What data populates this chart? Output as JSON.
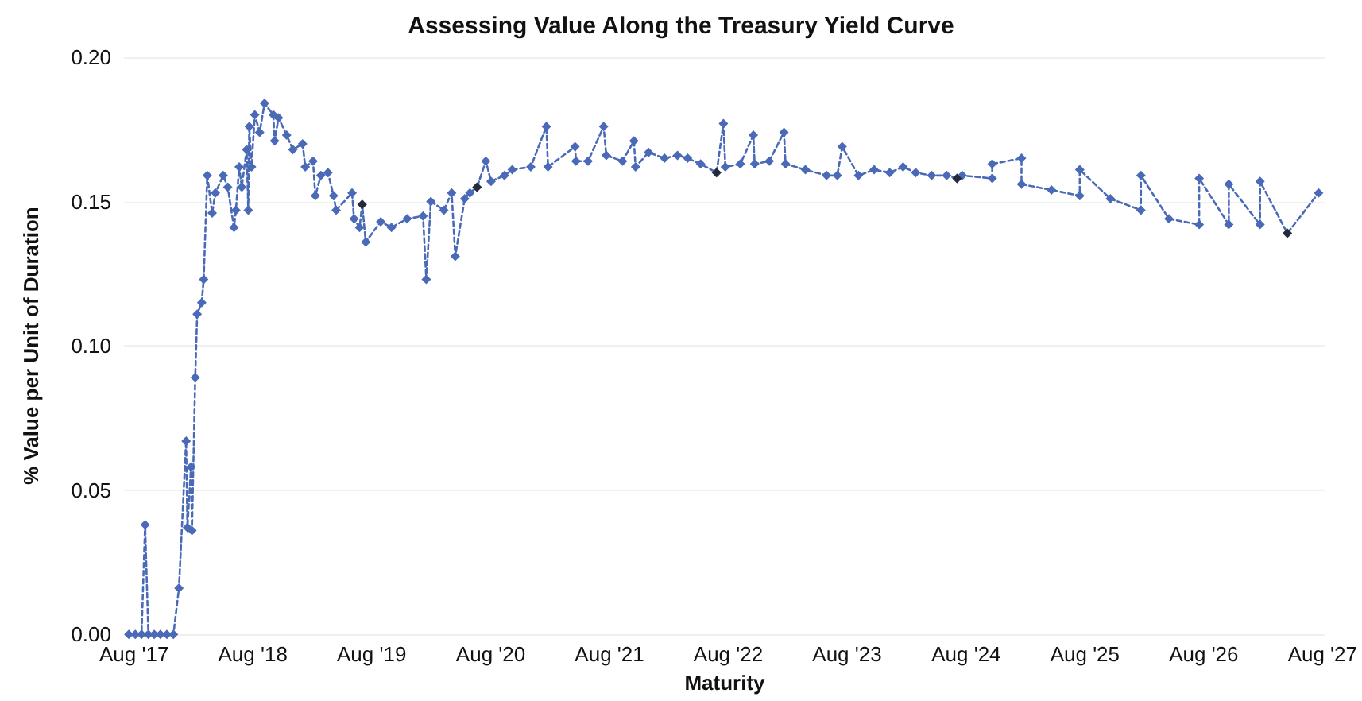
{
  "chart_data": {
    "type": "line",
    "title": "Assessing Value Along the Treasury Yield Curve",
    "xlabel": "Maturity",
    "ylabel": "% Value per Unit of Duration",
    "xlim": [
      "2017-07-01",
      "2027-08-10"
    ],
    "ylim": [
      0,
      0.2
    ],
    "xticks": [
      {
        "value": "2017-08",
        "label": "Aug '17"
      },
      {
        "value": "2018-08",
        "label": "Aug '18"
      },
      {
        "value": "2019-08",
        "label": "Aug '19"
      },
      {
        "value": "2020-08",
        "label": "Aug '20"
      },
      {
        "value": "2021-08",
        "label": "Aug '21"
      },
      {
        "value": "2022-08",
        "label": "Aug '22"
      },
      {
        "value": "2023-08",
        "label": "Aug '23"
      },
      {
        "value": "2024-08",
        "label": "Aug '24"
      },
      {
        "value": "2025-08",
        "label": "Aug '25"
      },
      {
        "value": "2026-08",
        "label": "Aug '26"
      },
      {
        "value": "2027-08",
        "label": "Aug '27"
      }
    ],
    "yticks": [
      {
        "value": 0,
        "label": "0.00"
      },
      {
        "value": 0.05,
        "label": "0.05"
      },
      {
        "value": 0.1,
        "label": "0.10"
      },
      {
        "value": 0.15,
        "label": "0.15"
      },
      {
        "value": 0.2,
        "label": "0.20"
      }
    ],
    "grid": "y",
    "marker": "diamond",
    "line_style": "dashed",
    "series": [
      {
        "color": "#4a6ab8",
        "x": [
          "2017-07-16",
          "2017-08-05",
          "2017-08-24",
          "2017-09-04",
          "2017-09-14",
          "2017-10-02",
          "2017-10-21",
          "2017-11-10",
          "2017-11-30",
          "2017-12-17",
          "2018-01-08",
          "2018-01-12",
          "2018-01-23",
          "2018-01-26",
          "2018-02-05",
          "2018-02-11",
          "2018-02-25",
          "2018-03-03",
          "2018-03-14",
          "2018-03-29",
          "2018-04-08",
          "2018-05-02",
          "2018-05-16",
          "2018-06-04",
          "2018-06-10",
          "2018-06-20",
          "2018-06-28",
          "2018-07-13",
          "2018-07-18",
          "2018-07-21",
          "2018-07-28",
          "2018-08-07",
          "2018-08-22",
          "2018-09-06",
          "2018-10-03",
          "2018-10-07",
          "2018-10-19",
          "2018-11-13",
          "2018-12-02",
          "2019-01-01",
          "2019-01-09",
          "2019-02-02",
          "2019-02-09",
          "2019-02-26",
          "2019-03-20",
          "2019-04-06",
          "2019-04-14",
          "2019-06-02",
          "2019-06-08",
          "2019-06-25",
          "2019-07-03",
          "2019-07-14",
          "2019-08-29",
          "2019-10-01",
          "2019-11-18",
          "2020-01-06",
          "2020-01-16",
          "2020-01-30",
          "2020-03-10",
          "2020-04-03",
          "2020-04-14",
          "2020-05-13",
          "2020-05-29",
          "2020-06-20",
          "2020-07-17",
          "2020-08-02",
          "2020-09-12",
          "2020-10-06",
          "2020-12-02",
          "2021-01-19",
          "2021-01-24",
          "2021-04-17",
          "2021-04-20",
          "2021-05-27",
          "2021-07-14",
          "2021-07-22",
          "2021-09-10",
          "2021-10-15",
          "2021-10-20",
          "2021-11-29",
          "2022-01-17",
          "2022-02-26",
          "2022-03-29",
          "2022-05-08",
          "2022-06-26",
          "2022-07-17",
          "2022-07-23",
          "2022-09-07",
          "2022-10-17",
          "2022-10-21",
          "2022-12-05",
          "2023-01-19",
          "2023-01-24",
          "2023-03-26",
          "2023-05-30",
          "2023-07-02",
          "2023-07-17",
          "2023-09-05",
          "2023-10-23",
          "2023-12-10",
          "2024-01-20",
          "2024-02-28",
          "2024-04-17",
          "2024-06-02",
          "2024-07-04",
          "2024-07-20",
          "2024-10-20",
          "2024-10-20",
          "2025-01-18",
          "2025-01-18",
          "2025-04-20",
          "2025-07-16",
          "2025-07-16",
          "2025-10-18",
          "2026-01-20",
          "2026-01-20",
          "2026-04-16",
          "2026-07-18",
          "2026-07-18",
          "2026-10-17",
          "2026-10-17",
          "2027-01-21",
          "2027-01-21",
          "2027-04-15",
          "2027-07-20"
        ],
        "values": [
          0,
          0,
          0,
          0.038,
          0,
          0,
          0,
          0,
          0,
          0.016,
          0.067,
          0.037,
          0.058,
          0.036,
          0.089,
          0.111,
          0.115,
          0.123,
          0.159,
          0.146,
          0.153,
          0.159,
          0.155,
          0.141,
          0.147,
          0.162,
          0.155,
          0.168,
          0.147,
          0.176,
          0.162,
          0.18,
          0.174,
          0.184,
          0.18,
          0.171,
          0.179,
          0.173,
          0.168,
          0.17,
          0.162,
          0.164,
          0.152,
          0.159,
          0.16,
          0.152,
          0.147,
          0.153,
          0.144,
          0.141,
          0.149,
          0.136,
          0.143,
          0.141,
          0.144,
          0.145,
          0.123,
          0.15,
          0.147,
          0.153,
          0.131,
          0.151,
          0.153,
          0.155,
          0.164,
          0.157,
          0.159,
          0.161,
          0.162,
          0.176,
          0.162,
          0.169,
          0.164,
          0.164,
          0.176,
          0.166,
          0.164,
          0.171,
          0.162,
          0.167,
          0.165,
          0.166,
          0.165,
          0.163,
          0.16,
          0.177,
          0.162,
          0.163,
          0.173,
          0.163,
          0.164,
          0.174,
          0.163,
          0.161,
          0.159,
          0.159,
          0.169,
          0.159,
          0.161,
          0.16,
          0.162,
          0.16,
          0.159,
          0.159,
          0.158,
          0.159,
          0.158,
          0.163,
          0.165,
          0.156,
          0.154,
          0.152,
          0.161,
          0.151,
          0.147,
          0.159,
          0.144,
          0.142,
          0.158,
          0.142,
          0.156,
          0.142,
          0.157,
          0.139,
          0.153
        ]
      },
      {
        "type": "scatter",
        "color": "#1a1a1a",
        "x": [
          "2019-07-03",
          "2020-06-20",
          "2022-06-26",
          "2024-07-04",
          "2027-04-15"
        ],
        "values": [
          0.149,
          0.155,
          0.16,
          0.158,
          0.139
        ]
      }
    ]
  }
}
